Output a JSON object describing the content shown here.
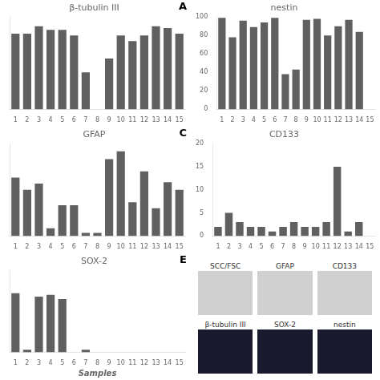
{
  "chart_data": [
    {
      "type": "bar",
      "title": "β-tubulin III",
      "annotations": [
        "A"
      ],
      "categories": [
        "1",
        "2",
        "3",
        "4",
        "5",
        "6",
        "7",
        "8",
        "9",
        "10",
        "11",
        "12",
        "13",
        "14",
        "15"
      ],
      "values": [
        82,
        82,
        90,
        86,
        86,
        80,
        40,
        0,
        55,
        80,
        74,
        80,
        90,
        88,
        82
      ],
      "color": "#606060",
      "ylim": [
        0,
        100
      ],
      "tick_labels": "x",
      "grid": false
    },
    {
      "type": "bar",
      "title": "nestin",
      "categories": [
        "1",
        "2",
        "3",
        "4",
        "5",
        "6",
        "7",
        "8",
        "9",
        "10",
        "11",
        "12",
        "13",
        "14",
        "15"
      ],
      "values": [
        99,
        78,
        96,
        89,
        94,
        99,
        38,
        43,
        97,
        98,
        80,
        90,
        97,
        84,
        0
      ],
      "color": "#606060",
      "ylim": [
        0,
        100
      ],
      "yticks": [
        0,
        20,
        40,
        60,
        80,
        100
      ],
      "grid": false
    },
    {
      "type": "bar",
      "title": "GFAP",
      "annotations": [
        "C"
      ],
      "categories": [
        "1",
        "2",
        "3",
        "4",
        "5",
        "6",
        "7",
        "8",
        "9",
        "10",
        "11",
        "12",
        "13",
        "14",
        "15"
      ],
      "values": [
        38,
        30,
        34,
        5,
        20,
        20,
        2,
        2,
        50,
        55,
        22,
        42,
        18,
        35,
        30
      ],
      "color": "#606060",
      "ylim": [
        0,
        60
      ],
      "tick_labels": "x",
      "grid": false
    },
    {
      "type": "bar",
      "title": "CD133",
      "categories": [
        "1",
        "2",
        "3",
        "4",
        "5",
        "6",
        "7",
        "8",
        "9",
        "10",
        "11",
        "12",
        "13",
        "14",
        "15"
      ],
      "values": [
        2,
        5,
        3,
        2,
        2,
        1,
        2,
        3,
        2,
        2,
        3,
        15,
        1,
        3,
        0
      ],
      "color": "#606060",
      "ylim": [
        0,
        20
      ],
      "yticks": [
        0,
        5,
        10,
        15,
        20
      ],
      "grid": false
    },
    {
      "type": "bar",
      "title": "SOX-2",
      "annotations": [
        "E"
      ],
      "xlabel": "Samples",
      "categories": [
        "1",
        "2",
        "3",
        "4",
        "5",
        "6",
        "7",
        "8",
        "9",
        "10",
        "11",
        "12",
        "13",
        "14",
        "15"
      ],
      "values": [
        72,
        3,
        68,
        70,
        65,
        0,
        3,
        0,
        0,
        0,
        0,
        0,
        0,
        0,
        0
      ],
      "color": "#606060",
      "ylim": [
        0,
        100
      ],
      "tick_labels": "x",
      "grid": false
    },
    {
      "type": "placeholder",
      "annotations": [
        "SCC/FSC",
        "GFAP",
        "CD133",
        "β-tubulin III",
        "SOX-2",
        "nestin"
      ]
    }
  ]
}
